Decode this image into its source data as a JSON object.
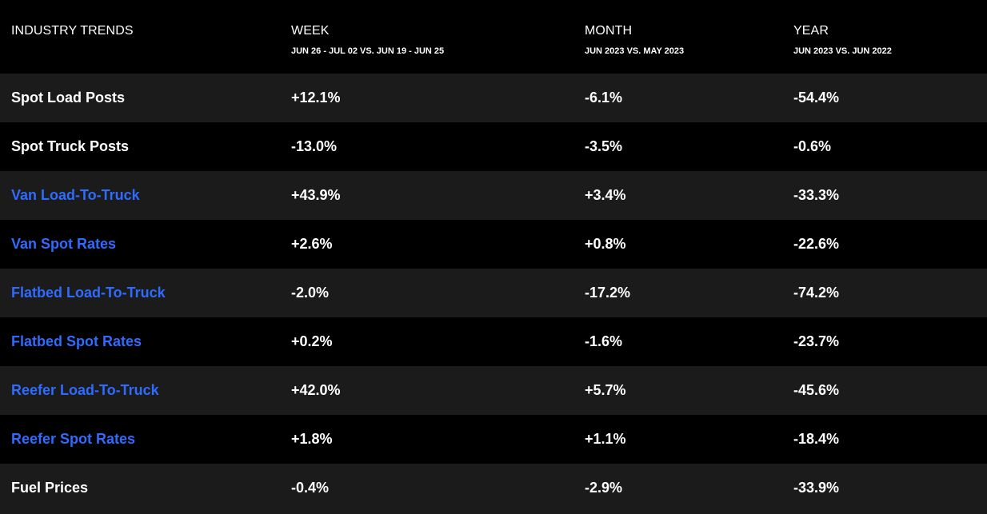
{
  "header": {
    "title": "INDUSTRY TRENDS",
    "columns": [
      {
        "label": "WEEK",
        "subtitle": "JUN 26 - JUL 02 VS. JUN 19 - JUN 25"
      },
      {
        "label": "MONTH",
        "subtitle": "JUN 2023 VS. MAY 2023"
      },
      {
        "label": "YEAR",
        "subtitle": "JUN 2023 VS. JUN 2022"
      }
    ]
  },
  "rows": [
    {
      "label": "Spot Load Posts",
      "link": false,
      "week": "+12.1%",
      "month": "-6.1%",
      "year": "-54.4%"
    },
    {
      "label": "Spot Truck Posts",
      "link": false,
      "week": "-13.0%",
      "month": "-3.5%",
      "year": "-0.6%"
    },
    {
      "label": "Van Load-To-Truck",
      "link": true,
      "week": "+43.9%",
      "month": "+3.4%",
      "year": "-33.3%"
    },
    {
      "label": "Van Spot Rates",
      "link": true,
      "week": "+2.6%",
      "month": "+0.8%",
      "year": "-22.6%"
    },
    {
      "label": "Flatbed Load-To-Truck",
      "link": true,
      "week": "-2.0%",
      "month": "-17.2%",
      "year": "-74.2%"
    },
    {
      "label": "Flatbed Spot Rates",
      "link": true,
      "week": "+0.2%",
      "month": "-1.6%",
      "year": "-23.7%"
    },
    {
      "label": "Reefer Load-To-Truck",
      "link": true,
      "week": "+42.0%",
      "month": "+5.7%",
      "year": "-45.6%"
    },
    {
      "label": "Reefer Spot Rates",
      "link": true,
      "week": "+1.8%",
      "month": "+1.1%",
      "year": "-18.4%"
    },
    {
      "label": "Fuel Prices",
      "link": false,
      "week": "-0.4%",
      "month": "-2.9%",
      "year": "-33.9%"
    }
  ],
  "colors": {
    "background": "#000000",
    "row_alt": "#1b1b1b",
    "text": "#ffffff",
    "link": "#2f6bff"
  }
}
